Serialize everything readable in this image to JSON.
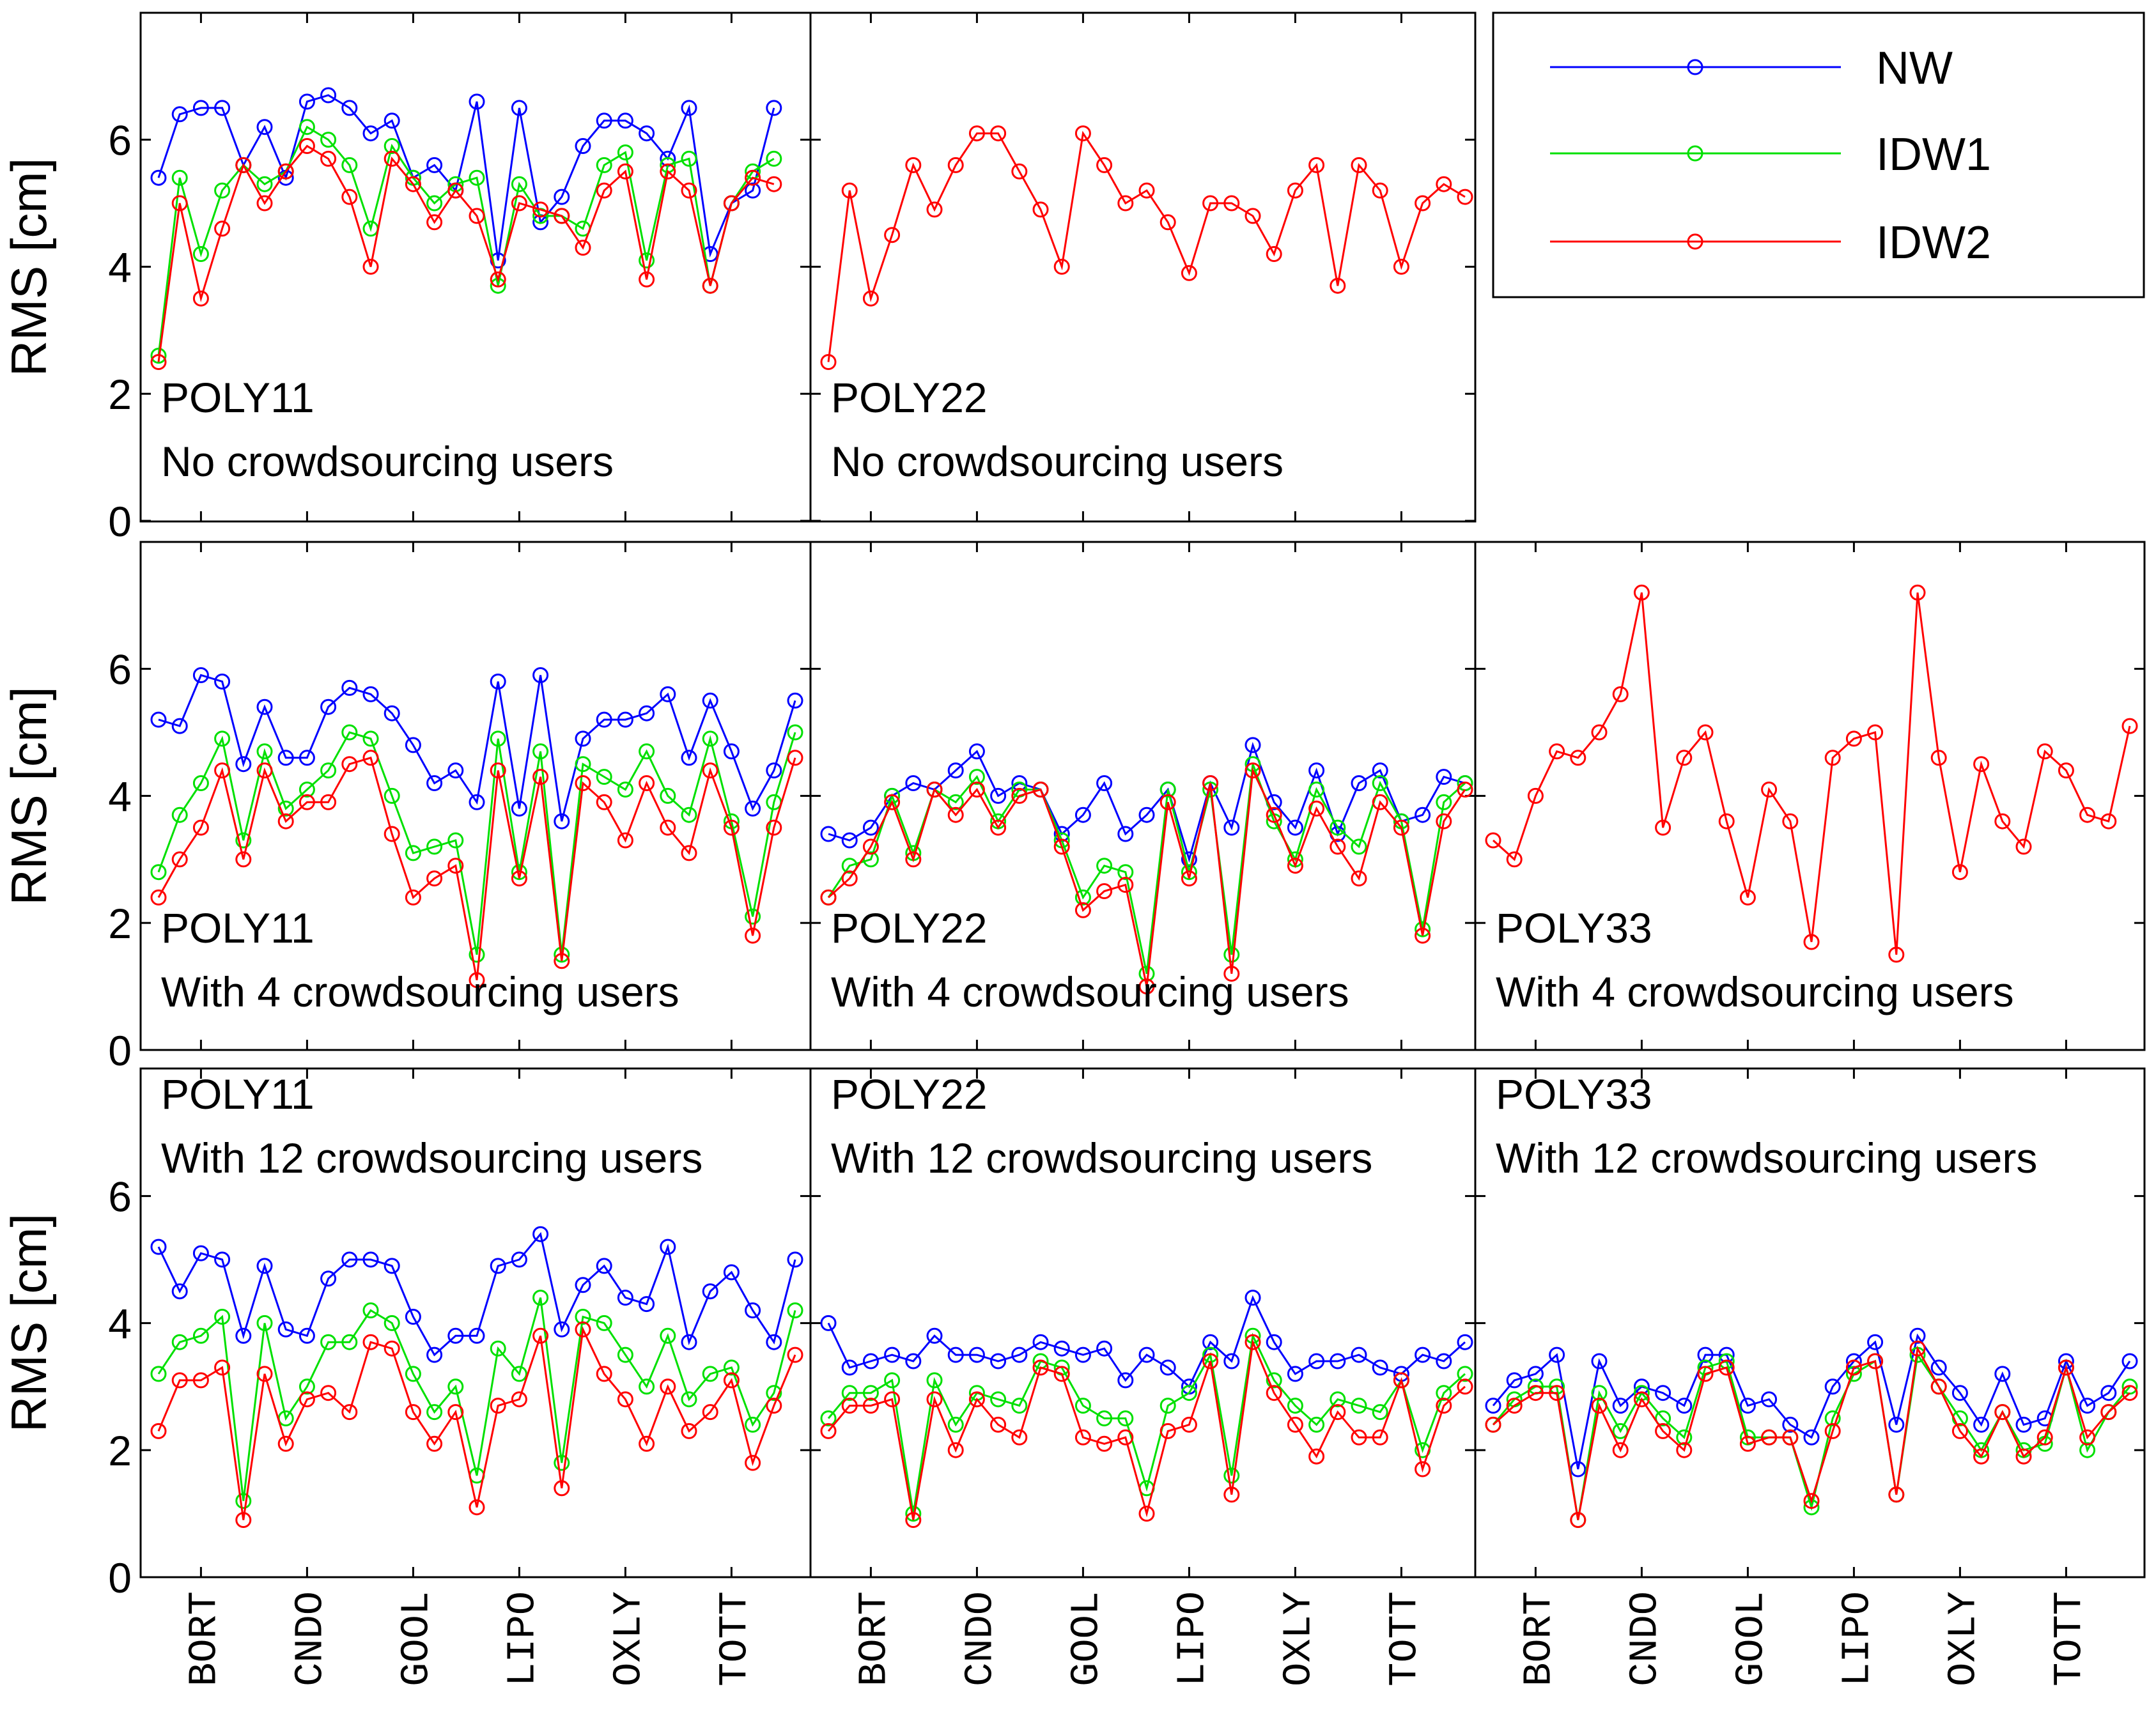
{
  "ylabel": "RMS [cm]",
  "legend": [
    {
      "name": "NW",
      "color": "#0000FF"
    },
    {
      "name": "IDW1",
      "color": "#00E000"
    },
    {
      "name": "IDW2",
      "color": "#FF0000"
    }
  ],
  "chart_data": [
    {
      "type": "line",
      "panel": "row1-col1",
      "title": "POLY11",
      "subtitle": "No crowdsourcing users",
      "ylabel": "RMS [cm]",
      "ylim": [
        0,
        7.8
      ],
      "yticks": [
        0,
        2,
        4,
        6
      ],
      "xticks": [
        "BORT",
        "CNDO",
        "GOOL",
        "LIPO",
        "OXLY",
        "TOTT"
      ],
      "xtick_index": [
        2,
        7,
        12,
        17,
        22,
        27
      ],
      "series": [
        {
          "name": "NW",
          "values": [
            5.4,
            6.4,
            6.5,
            6.5,
            5.6,
            6.2,
            5.4,
            6.6,
            6.7,
            6.5,
            6.1,
            6.3,
            5.4,
            5.6,
            5.2,
            6.6,
            4.1,
            6.5,
            4.7,
            5.1,
            5.9,
            6.3,
            6.3,
            6.1,
            5.7,
            6.5,
            4.2,
            5.0,
            5.2,
            6.5
          ]
        },
        {
          "name": "IDW1",
          "values": [
            2.6,
            5.4,
            4.2,
            5.2,
            5.6,
            5.3,
            5.5,
            6.2,
            6.0,
            5.6,
            4.6,
            5.9,
            5.4,
            5.0,
            5.3,
            5.4,
            3.7,
            5.3,
            4.8,
            4.8,
            4.6,
            5.6,
            5.8,
            4.1,
            5.6,
            5.7,
            3.7,
            5.0,
            5.5,
            5.7
          ]
        },
        {
          "name": "IDW2",
          "values": [
            2.5,
            5.0,
            3.5,
            4.6,
            5.6,
            5.0,
            5.5,
            5.9,
            5.7,
            5.1,
            4.0,
            5.7,
            5.3,
            4.7,
            5.2,
            4.8,
            3.8,
            5.0,
            4.9,
            4.8,
            4.3,
            5.2,
            5.5,
            3.8,
            5.5,
            5.2,
            3.7,
            5.0,
            5.4,
            5.3
          ]
        }
      ]
    },
    {
      "type": "line",
      "panel": "row1-col2",
      "title": "POLY22",
      "subtitle": "No crowdsourcing users",
      "ylabel": "",
      "ylim": [
        0,
        7.8
      ],
      "yticks": [
        0,
        2,
        4,
        6
      ],
      "xticks": [
        "BORT",
        "CNDO",
        "GOOL",
        "LIPO",
        "OXLY",
        "TOTT"
      ],
      "xtick_index": [
        2,
        7,
        12,
        17,
        22,
        27
      ],
      "series": [
        {
          "name": "IDW2",
          "values": [
            2.5,
            5.2,
            3.5,
            4.5,
            5.6,
            4.9,
            5.6,
            6.1,
            6.1,
            5.5,
            4.9,
            4.0,
            6.1,
            5.6,
            5.0,
            5.2,
            4.7,
            3.9,
            5.0,
            5.0,
            4.8,
            4.2,
            5.2,
            5.6,
            3.7,
            5.6,
            5.2,
            4.0,
            5.0,
            5.3,
            5.1
          ]
        }
      ]
    },
    {
      "type": "line",
      "panel": "row2-col1",
      "title": "POLY11",
      "subtitle": "With 4 crowdsourcing users",
      "ylabel": "RMS [cm]",
      "ylim": [
        0,
        7.8
      ],
      "yticks": [
        0,
        2,
        4,
        6
      ],
      "xticks": [
        "BORT",
        "CNDO",
        "GOOL",
        "LIPO",
        "OXLY",
        "TOTT"
      ],
      "xtick_index": [
        2,
        7,
        12,
        17,
        22,
        27
      ],
      "series": [
        {
          "name": "NW",
          "values": [
            5.2,
            5.1,
            5.9,
            5.8,
            4.5,
            5.4,
            4.6,
            4.6,
            5.4,
            5.7,
            5.6,
            5.3,
            4.8,
            4.2,
            4.4,
            3.9,
            5.8,
            3.8,
            5.9,
            3.6,
            4.9,
            5.2,
            5.2,
            5.3,
            5.6,
            4.6,
            5.5,
            4.7,
            3.8,
            4.4,
            5.5
          ]
        },
        {
          "name": "IDW1",
          "values": [
            2.8,
            3.7,
            4.2,
            4.9,
            3.3,
            4.7,
            3.8,
            4.1,
            4.4,
            5.0,
            4.9,
            4.0,
            3.1,
            3.2,
            3.3,
            1.5,
            4.9,
            2.8,
            4.7,
            1.5,
            4.5,
            4.3,
            4.1,
            4.7,
            4.0,
            3.7,
            4.9,
            3.6,
            2.1,
            3.9,
            5.0
          ]
        },
        {
          "name": "IDW2",
          "values": [
            2.4,
            3.0,
            3.5,
            4.4,
            3.0,
            4.4,
            3.6,
            3.9,
            3.9,
            4.5,
            4.6,
            3.4,
            2.4,
            2.7,
            2.9,
            1.1,
            4.4,
            2.7,
            4.3,
            1.4,
            4.2,
            3.9,
            3.3,
            4.2,
            3.5,
            3.1,
            4.4,
            3.5,
            1.8,
            3.5,
            4.6
          ]
        }
      ]
    },
    {
      "type": "line",
      "panel": "row2-col2",
      "title": "POLY22",
      "subtitle": "With 4 crowdsourcing users",
      "ylabel": "",
      "ylim": [
        0,
        7.8
      ],
      "yticks": [
        0,
        2,
        4,
        6
      ],
      "xticks": [
        "BORT",
        "CNDO",
        "GOOL",
        "LIPO",
        "OXLY",
        "TOTT"
      ],
      "xtick_index": [
        2,
        7,
        12,
        17,
        22,
        27
      ],
      "series": [
        {
          "name": "NW",
          "values": [
            3.4,
            3.3,
            3.5,
            4.0,
            4.2,
            4.1,
            4.4,
            4.7,
            4.0,
            4.2,
            4.1,
            3.4,
            3.7,
            4.2,
            3.4,
            3.7,
            4.1,
            3.0,
            4.2,
            3.5,
            4.8,
            3.9,
            3.5,
            4.4,
            3.4,
            4.2,
            4.4,
            3.6,
            3.7,
            4.3,
            4.2
          ]
        },
        {
          "name": "IDW1",
          "values": [
            2.4,
            2.9,
            3.0,
            4.0,
            3.1,
            4.1,
            3.9,
            4.3,
            3.6,
            4.1,
            4.1,
            3.3,
            2.4,
            2.9,
            2.8,
            1.2,
            4.1,
            2.8,
            4.1,
            1.5,
            4.5,
            3.6,
            3.0,
            4.1,
            3.5,
            3.2,
            4.2,
            3.6,
            1.9,
            3.9,
            4.2
          ]
        },
        {
          "name": "IDW2",
          "values": [
            2.4,
            2.7,
            3.2,
            3.9,
            3.0,
            4.1,
            3.7,
            4.1,
            3.5,
            4.0,
            4.1,
            3.2,
            2.2,
            2.5,
            2.6,
            1.0,
            3.9,
            2.7,
            4.2,
            1.2,
            4.4,
            3.7,
            2.9,
            3.8,
            3.2,
            2.7,
            3.9,
            3.5,
            1.8,
            3.6,
            4.1
          ]
        }
      ]
    },
    {
      "type": "line",
      "panel": "row2-col3",
      "title": "POLY33",
      "subtitle": "With 4 crowdsourcing users",
      "ylabel": "",
      "ylim": [
        0,
        7.8
      ],
      "yticks": [
        0,
        2,
        4,
        6
      ],
      "xticks": [
        "BORT",
        "CNDO",
        "GOOL",
        "LIPO",
        "OXLY",
        "TOTT"
      ],
      "xtick_index": [
        2,
        7,
        12,
        17,
        22,
        27
      ],
      "series": [
        {
          "name": "IDW2",
          "values": [
            3.3,
            3.0,
            4.0,
            4.7,
            4.6,
            5.0,
            5.6,
            7.2,
            3.5,
            4.6,
            5.0,
            3.6,
            2.4,
            4.1,
            3.6,
            1.7,
            4.6,
            4.9,
            5.0,
            1.5,
            7.2,
            4.6,
            2.8,
            4.5,
            3.6,
            3.2,
            4.7,
            4.4,
            3.7,
            3.6,
            5.1
          ]
        }
      ]
    },
    {
      "type": "line",
      "panel": "row3-col1",
      "title": "POLY11",
      "subtitle": "With 12 crowdsourcing users",
      "ylabel": "RMS [cm]",
      "ylim": [
        0,
        7.8
      ],
      "yticks": [
        0,
        2,
        4,
        6
      ],
      "xticks": [
        "BORT",
        "CNDO",
        "GOOL",
        "LIPO",
        "OXLY",
        "TOTT"
      ],
      "xtick_index": [
        2,
        7,
        12,
        17,
        22,
        27
      ],
      "series": [
        {
          "name": "NW",
          "values": [
            5.2,
            4.5,
            5.1,
            5.0,
            3.8,
            4.9,
            3.9,
            3.8,
            4.7,
            5.0,
            5.0,
            4.9,
            4.1,
            3.5,
            3.8,
            3.8,
            4.9,
            5.0,
            5.4,
            3.9,
            4.6,
            4.9,
            4.4,
            4.3,
            5.2,
            3.7,
            4.5,
            4.8,
            4.2,
            3.7,
            5.0
          ]
        },
        {
          "name": "IDW1",
          "values": [
            3.2,
            3.7,
            3.8,
            4.1,
            1.2,
            4.0,
            2.5,
            3.0,
            3.7,
            3.7,
            4.2,
            4.0,
            3.2,
            2.6,
            3.0,
            1.6,
            3.6,
            3.2,
            4.4,
            1.8,
            4.1,
            4.0,
            3.5,
            3.0,
            3.8,
            2.8,
            3.2,
            3.3,
            2.4,
            2.9,
            4.2
          ]
        },
        {
          "name": "IDW2",
          "values": [
            2.3,
            3.1,
            3.1,
            3.3,
            0.9,
            3.2,
            2.1,
            2.8,
            2.9,
            2.6,
            3.7,
            3.6,
            2.6,
            2.1,
            2.6,
            1.1,
            2.7,
            2.8,
            3.8,
            1.4,
            3.9,
            3.2,
            2.8,
            2.1,
            3.0,
            2.3,
            2.6,
            3.1,
            1.8,
            2.7,
            3.5
          ]
        }
      ]
    },
    {
      "type": "line",
      "panel": "row3-col2",
      "title": "POLY22",
      "subtitle": "With 12 crowdsourcing users",
      "ylabel": "",
      "ylim": [
        0,
        7.8
      ],
      "yticks": [
        0,
        2,
        4,
        6
      ],
      "xticks": [
        "BORT",
        "CNDO",
        "GOOL",
        "LIPO",
        "OXLY",
        "TOTT"
      ],
      "xtick_index": [
        2,
        7,
        12,
        17,
        22,
        27
      ],
      "series": [
        {
          "name": "NW",
          "values": [
            4.0,
            3.3,
            3.4,
            3.5,
            3.4,
            3.8,
            3.5,
            3.5,
            3.4,
            3.5,
            3.7,
            3.6,
            3.5,
            3.6,
            3.1,
            3.5,
            3.3,
            3.0,
            3.7,
            3.4,
            4.4,
            3.7,
            3.2,
            3.4,
            3.4,
            3.5,
            3.3,
            3.2,
            3.5,
            3.4,
            3.7
          ]
        },
        {
          "name": "IDW1",
          "values": [
            2.5,
            2.9,
            2.9,
            3.1,
            1.0,
            3.1,
            2.4,
            2.9,
            2.8,
            2.7,
            3.4,
            3.3,
            2.7,
            2.5,
            2.5,
            1.4,
            2.7,
            2.9,
            3.5,
            1.6,
            3.8,
            3.1,
            2.7,
            2.4,
            2.8,
            2.7,
            2.6,
            3.1,
            2.0,
            2.9,
            3.2
          ]
        },
        {
          "name": "IDW2",
          "values": [
            2.3,
            2.7,
            2.7,
            2.8,
            0.9,
            2.8,
            2.0,
            2.8,
            2.4,
            2.2,
            3.3,
            3.2,
            2.2,
            2.1,
            2.2,
            1.0,
            2.3,
            2.4,
            3.4,
            1.3,
            3.7,
            2.9,
            2.4,
            1.9,
            2.6,
            2.2,
            2.2,
            3.1,
            1.7,
            2.7,
            3.0
          ]
        }
      ]
    },
    {
      "type": "line",
      "panel": "row3-col3",
      "title": "POLY33",
      "subtitle": "With 12 crowdsourcing users",
      "ylabel": "",
      "ylim": [
        0,
        7.8
      ],
      "yticks": [
        0,
        2,
        4,
        6
      ],
      "xticks": [
        "BORT",
        "CNDO",
        "GOOL",
        "LIPO",
        "OXLY",
        "TOTT"
      ],
      "xtick_index": [
        2,
        7,
        12,
        17,
        22,
        27
      ],
      "series": [
        {
          "name": "NW",
          "values": [
            2.7,
            3.1,
            3.2,
            3.5,
            1.7,
            3.4,
            2.7,
            3.0,
            2.9,
            2.7,
            3.5,
            3.5,
            2.7,
            2.8,
            2.4,
            2.2,
            3.0,
            3.4,
            3.7,
            2.4,
            3.8,
            3.3,
            2.9,
            2.4,
            3.2,
            2.4,
            2.5,
            3.4,
            2.7,
            2.9,
            3.4
          ]
        },
        {
          "name": "IDW1",
          "values": [
            2.4,
            2.8,
            3.0,
            3.0,
            0.9,
            2.9,
            2.3,
            2.9,
            2.5,
            2.2,
            3.3,
            3.4,
            2.2,
            2.2,
            2.2,
            1.1,
            2.5,
            3.2,
            3.4,
            1.3,
            3.5,
            3.0,
            2.5,
            2.0,
            2.6,
            2.0,
            2.1,
            3.3,
            2.0,
            2.6,
            3.0
          ]
        },
        {
          "name": "IDW2",
          "values": [
            2.4,
            2.7,
            2.9,
            2.9,
            0.9,
            2.7,
            2.0,
            2.8,
            2.3,
            2.0,
            3.2,
            3.3,
            2.1,
            2.2,
            2.2,
            1.2,
            2.3,
            3.3,
            3.4,
            1.3,
            3.6,
            3.0,
            2.3,
            1.9,
            2.6,
            1.9,
            2.2,
            3.3,
            2.2,
            2.6,
            2.9
          ]
        }
      ]
    }
  ]
}
